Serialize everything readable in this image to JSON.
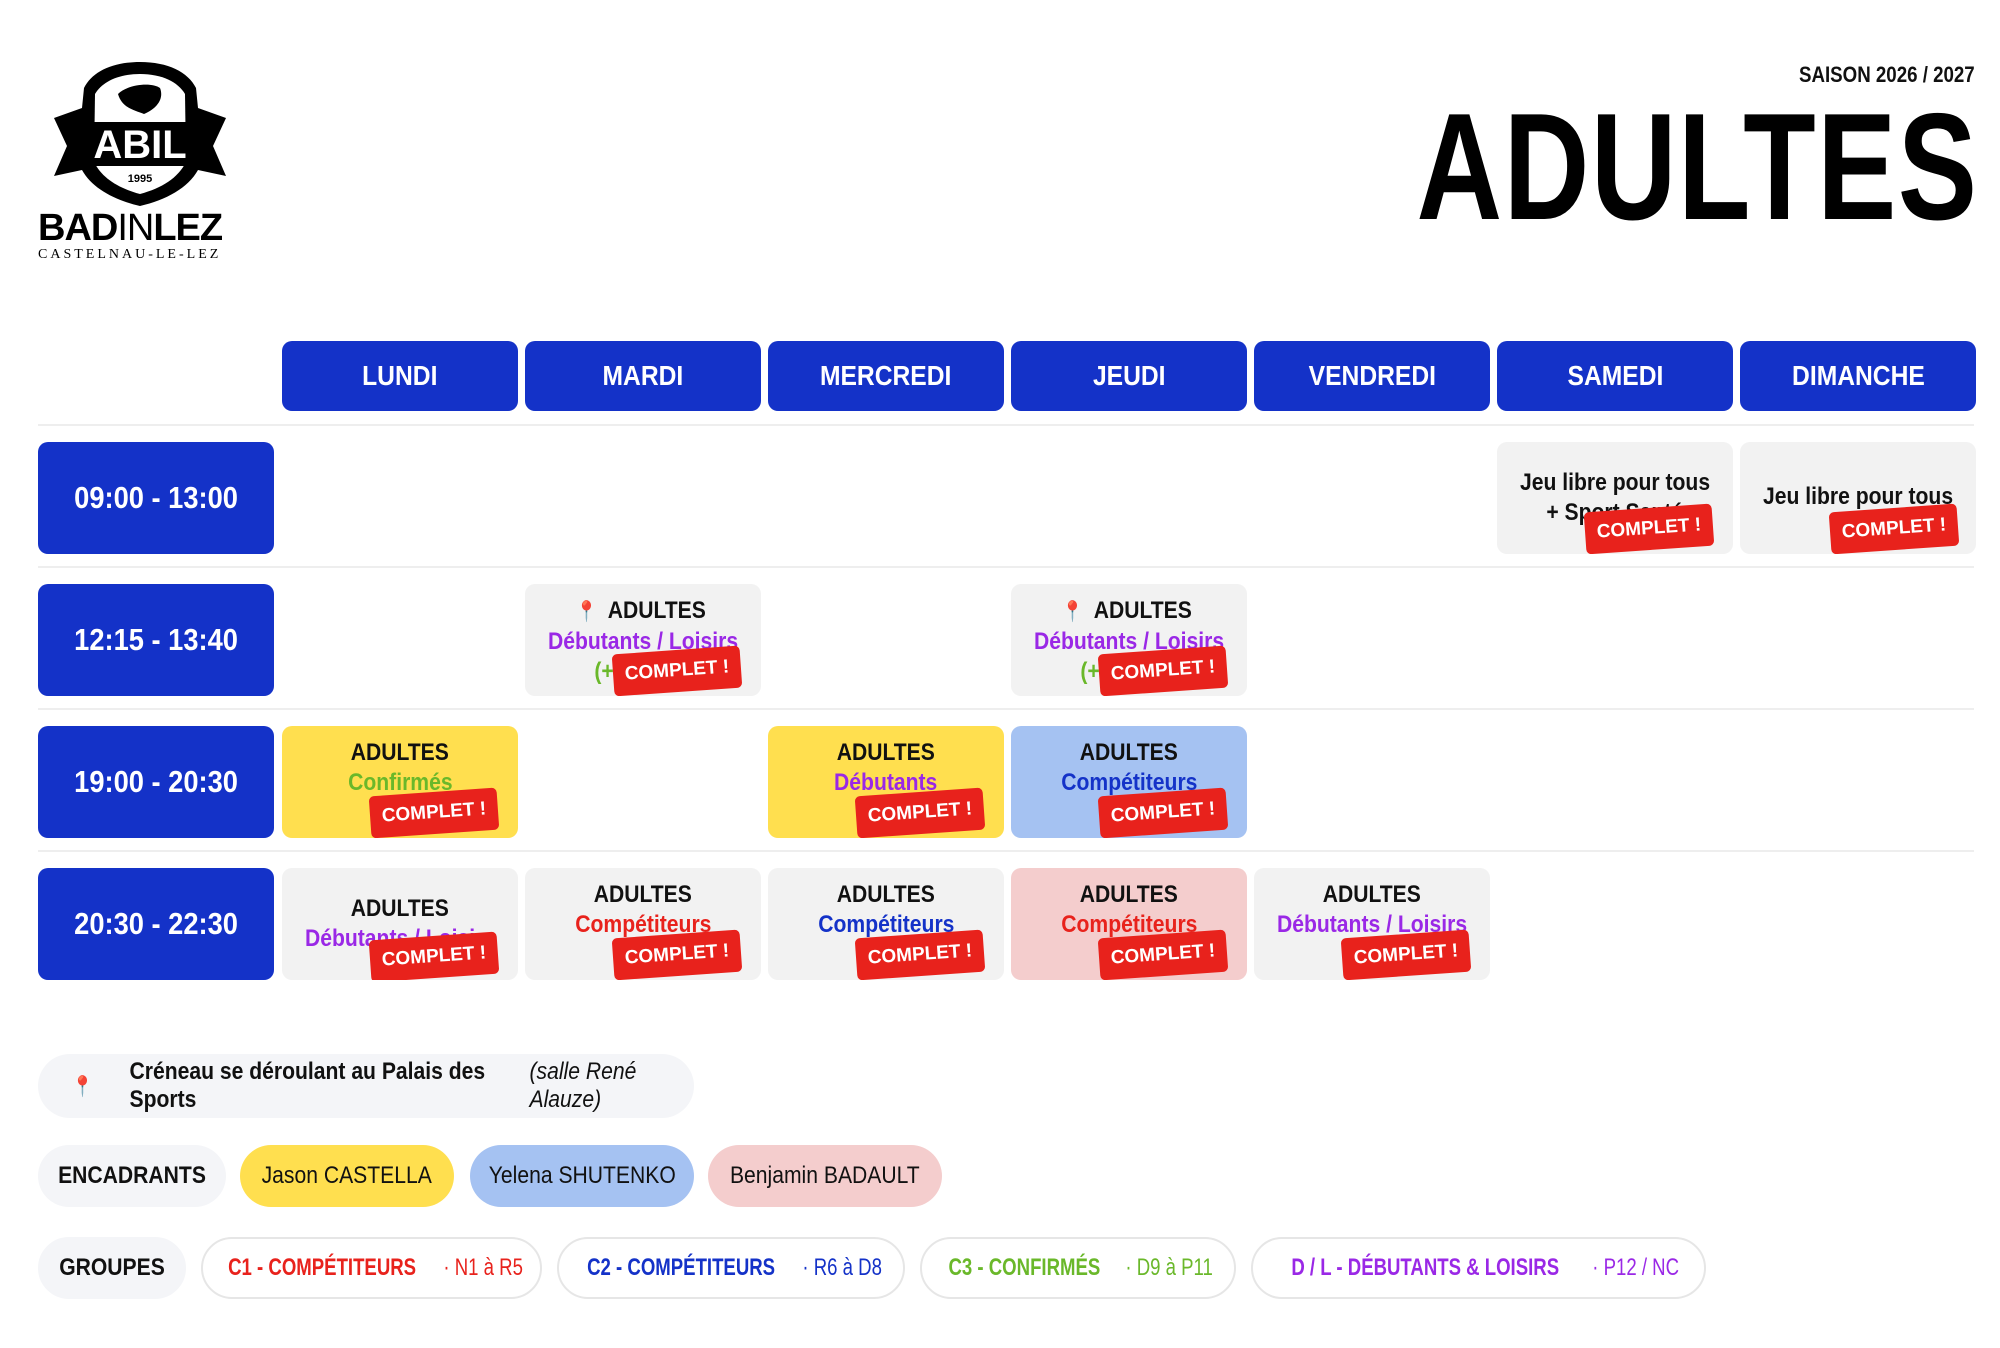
{
  "brand": {
    "shield_text": "ABIL",
    "shield_year": "1995",
    "name_bold_1": "BAD",
    "name_thin": "IN",
    "name_bold_2": "LEZ",
    "city": "CASTELNAU-LE-LEZ"
  },
  "header": {
    "season": "SAISON 2026 / 2027",
    "title": "ADULTES"
  },
  "days": [
    "LUNDI",
    "MARDI",
    "MERCREDI",
    "JEUDI",
    "VENDREDI",
    "SAMEDI",
    "DIMANCHE"
  ],
  "times": [
    "09:00 - 13:00",
    "12:15 - 13:40",
    "19:00 - 20:30",
    "20:30 - 22:30"
  ],
  "complet_label": "COMPLET !",
  "slots": {
    "sat_morning": {
      "l1": "Jeu libre pour tous",
      "l2": "+ Sport Santé"
    },
    "sun_morning": {
      "l1": "Jeu libre pour tous"
    },
    "tue_noon": {
      "l1": "ADULTES",
      "l2": "Débutants / Loisirs",
      "l3": "(+"
    },
    "thu_noon": {
      "l1": "ADULTES",
      "l2": "Débutants / Loisirs",
      "l3": "(+"
    },
    "mon_19": {
      "l1": "ADULTES",
      "l2": "Confirmés"
    },
    "wed_19": {
      "l1": "ADULTES",
      "l2": "Débutants"
    },
    "thu_19": {
      "l1": "ADULTES",
      "l2": "Compétiteurs"
    },
    "mon_2030": {
      "l1": "ADULTES",
      "l2": "Débutants / Loisirs"
    },
    "tue_2030": {
      "l1": "ADULTES",
      "l2": "Compétiteurs"
    },
    "wed_2030": {
      "l1": "ADULTES",
      "l2": "Compétiteurs"
    },
    "thu_2030": {
      "l1": "ADULTES",
      "l2": "Compétiteurs"
    },
    "fri_2030": {
      "l1": "ADULTES",
      "l2": "Débutants / Loisirs"
    }
  },
  "legend": {
    "pin_icon": "map-pin-icon",
    "text": "Créneau se déroulant au Palais des Sports",
    "note": "(salle René Alauze)"
  },
  "coaches": {
    "label": "ENCADRANTS",
    "items": [
      {
        "name": "Jason CASTELLA",
        "color": "#ffdf4f"
      },
      {
        "name": "Yelena SHUTENKO",
        "color": "#a5c2f2"
      },
      {
        "name": "Benjamin BADAULT",
        "color": "#f4cdcd"
      }
    ]
  },
  "groups": {
    "label": "GROUPES",
    "items": [
      {
        "name": "C1 - COMPÉTITEURS",
        "range": "· N1 à R5",
        "color": "#e8221c"
      },
      {
        "name": "C2 - COMPÉTITEURS",
        "range": "· R6 à D8",
        "color": "#1432c8"
      },
      {
        "name": "C3 - CONFIRMÉS",
        "range": "· D9 à P11",
        "color": "#6ab82a"
      },
      {
        "name": "D / L - DÉBUTANTS & LOISIRS",
        "range": "· P12 / NC",
        "color": "#9a28e6"
      }
    ]
  },
  "colors": {
    "primary_blue": "#1432c8",
    "complet_red": "#e8221c",
    "slot_grey": "#f2f2f2"
  }
}
